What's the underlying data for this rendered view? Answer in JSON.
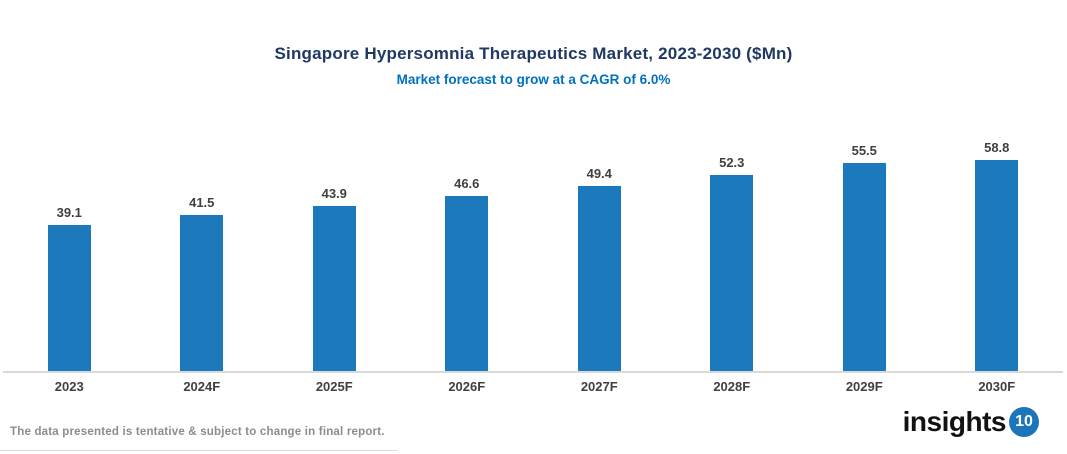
{
  "header": {
    "title": "Singapore Hypersomnia Therapeutics Market, 2023-2030 ($Mn)",
    "subtitle": "Market forecast to grow at a CAGR of 6.0%"
  },
  "chart_data": {
    "type": "bar",
    "title": "Singapore Hypersomnia Therapeutics Market, 2023-2030 ($Mn)",
    "subtitle": "Market forecast to grow at a CAGR of 6.0%",
    "categories": [
      "2023",
      "2024F",
      "2025F",
      "2026F",
      "2027F",
      "2028F",
      "2029F",
      "2030F"
    ],
    "values": [
      39.1,
      41.5,
      43.9,
      46.6,
      49.4,
      52.3,
      55.5,
      58.8
    ],
    "xlabel": "",
    "ylabel": "",
    "ylim": [
      0,
      61.5
    ],
    "grid": false,
    "legend": "none",
    "value_labels_shown": true,
    "bar_color": "#1B79BC"
  },
  "footer": {
    "disclaimer": "The data presented is tentative & subject to change in final report."
  },
  "logo": {
    "text": "insights",
    "badge": "10"
  },
  "colors": {
    "title": "#1F3864",
    "subtitle": "#0070C0",
    "bar": "#1B79BC",
    "value_label": "#404040",
    "axis_label": "#404040",
    "axis_line": "#D9D9D9",
    "footer_text": "#8C8C8C",
    "logo_text": "#121212",
    "logo_badge": "#1B75BB"
  }
}
